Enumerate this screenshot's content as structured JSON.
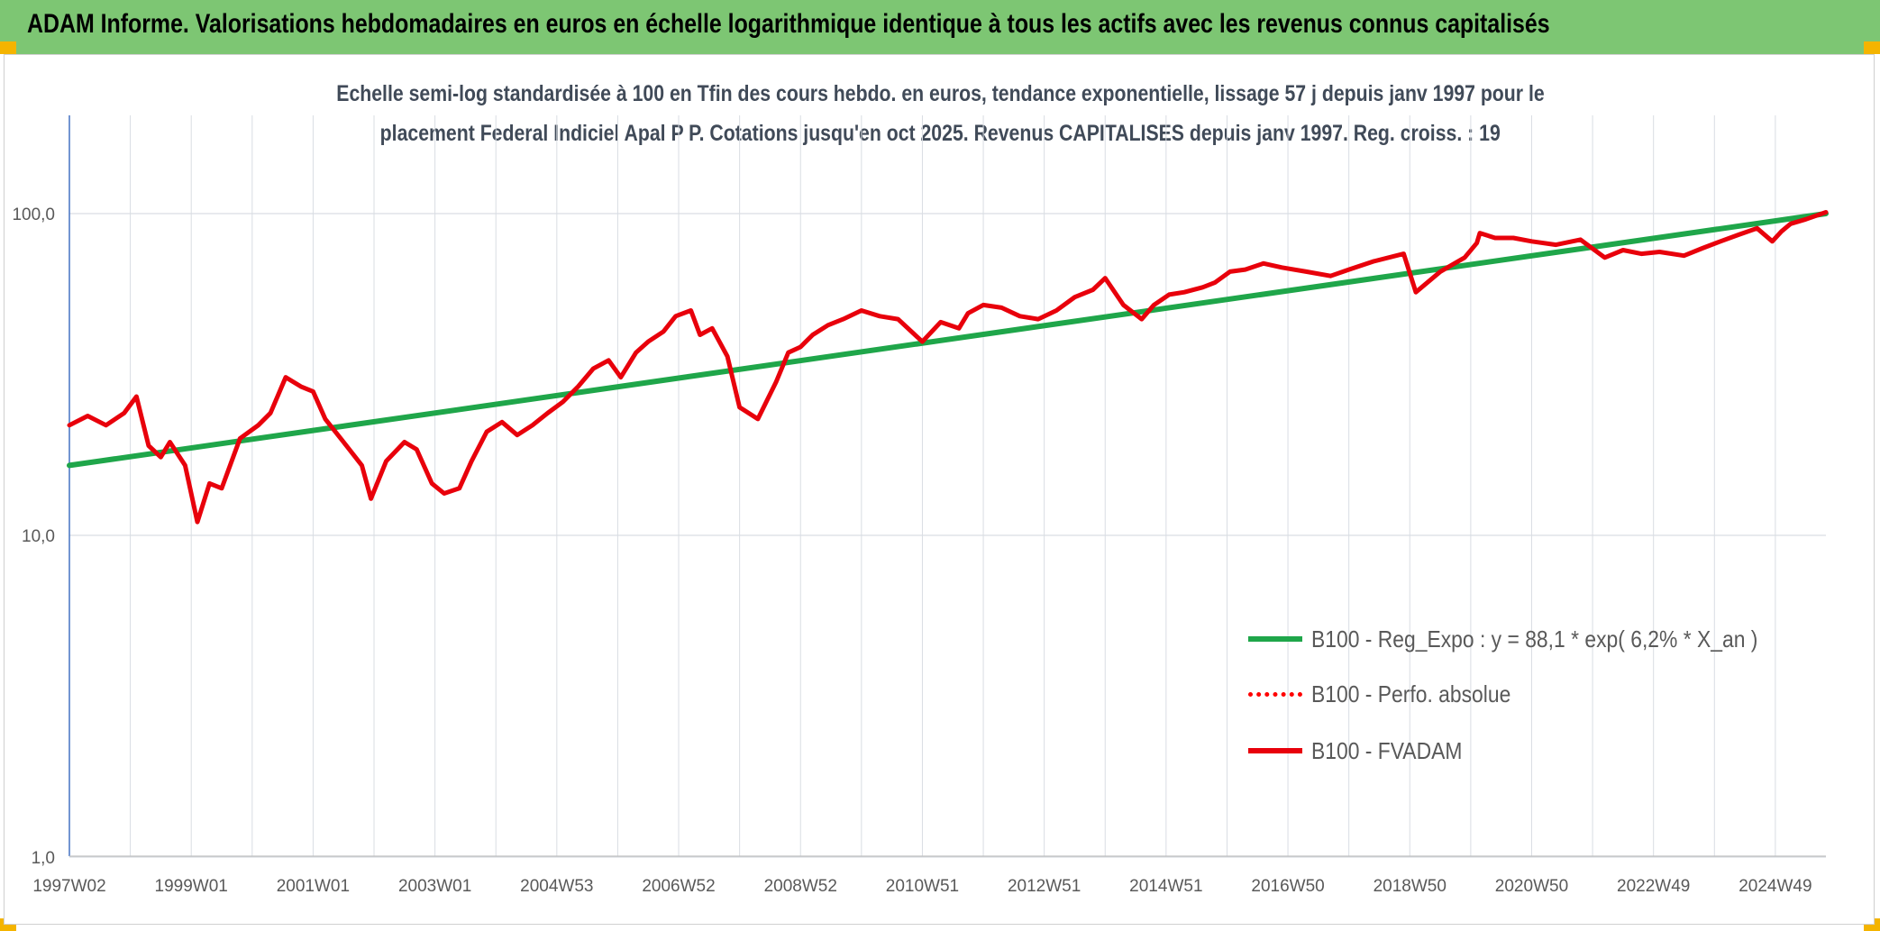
{
  "banner": {
    "title": "ADAM Informe. Valorisations hebdomadaires en euros en échelle logarithmique identique à tous les actifs avec les revenus connus capitalisés"
  },
  "chart_data": {
    "type": "line",
    "title_line1": "Echelle semi-log standardisée à 100 en Tfin des cours hebdo. en euros, tendance exponentielle, lissage 57 j depuis janv 1997 pour le",
    "title_line2": "placement Federal Indiciel Apal P P. Cotations jusqu'en oct 2025. Revenus CAPITALISES depuis janv 1997. Reg. croiss. : 19",
    "y_scale": "log",
    "ylim": [
      1,
      200
    ],
    "y_ticks": [
      {
        "value": 1,
        "label": "1,0"
      },
      {
        "value": 10,
        "label": "10,0"
      },
      {
        "value": 100,
        "label": "100,0"
      }
    ],
    "xlim": [
      1997.0,
      2025.83
    ],
    "x_ticks": [
      {
        "value": 1997.0,
        "label": "1997W02"
      },
      {
        "value": 1999.0,
        "label": "1999W01"
      },
      {
        "value": 2001.0,
        "label": "2001W01"
      },
      {
        "value": 2003.0,
        "label": "2003W01"
      },
      {
        "value": 2005.0,
        "label": "2004W53"
      },
      {
        "value": 2007.0,
        "label": "2006W52"
      },
      {
        "value": 2009.0,
        "label": "2008W52"
      },
      {
        "value": 2011.0,
        "label": "2010W51"
      },
      {
        "value": 2013.0,
        "label": "2012W51"
      },
      {
        "value": 2015.0,
        "label": "2014W51"
      },
      {
        "value": 2017.0,
        "label": "2016W50"
      },
      {
        "value": 2019.0,
        "label": "2018W50"
      },
      {
        "value": 2021.0,
        "label": "2020W50"
      },
      {
        "value": 2023.0,
        "label": "2022W49"
      },
      {
        "value": 2025.0,
        "label": "2024W49"
      }
    ],
    "grid": true,
    "legend_position": "bottom-right",
    "series": [
      {
        "name": "B100 - Reg_Expo : y = 88,1 * exp( 6,2% *  X_an )",
        "color": "#1fa64a",
        "style": "solid",
        "x": [
          1997.0,
          2025.83
        ],
        "y": [
          16.5,
          100
        ]
      },
      {
        "name": "B100 - Perfo. absolue",
        "color": "#ff0000",
        "style": "dotted",
        "x": [],
        "y": []
      },
      {
        "name": "B100 - FVADAM",
        "color": "#e8000b",
        "style": "solid",
        "x": [
          1997.0,
          1997.3,
          1997.6,
          1997.9,
          1998.1,
          1998.3,
          1998.5,
          1998.65,
          1998.9,
          1999.1,
          1999.3,
          1999.5,
          1999.8,
          2000.1,
          2000.3,
          2000.55,
          2000.8,
          2001.0,
          2001.2,
          2001.5,
          2001.8,
          2001.95,
          2002.2,
          2002.5,
          2002.7,
          2002.95,
          2003.15,
          2003.4,
          2003.6,
          2003.85,
          2004.1,
          2004.35,
          2004.6,
          2004.85,
          2005.1,
          2005.35,
          2005.6,
          2005.85,
          2006.05,
          2006.3,
          2006.5,
          2006.75,
          2006.95,
          2007.2,
          2007.35,
          2007.55,
          2007.8,
          2008.0,
          2008.3,
          2008.6,
          2008.8,
          2009.0,
          2009.2,
          2009.45,
          2009.7,
          2010.0,
          2010.3,
          2010.6,
          2011.0,
          2011.3,
          2011.6,
          2011.75,
          2012.0,
          2012.3,
          2012.6,
          2012.9,
          2013.2,
          2013.5,
          2013.8,
          2014.0,
          2014.3,
          2014.6,
          2014.8,
          2015.05,
          2015.3,
          2015.6,
          2015.8,
          2016.05,
          2016.3,
          2016.6,
          2016.9,
          2017.3,
          2017.7,
          2018.0,
          2018.4,
          2018.9,
          2019.1,
          2019.5,
          2019.9,
          2020.1,
          2020.15,
          2020.4,
          2020.7,
          2021.0,
          2021.4,
          2021.8,
          2022.2,
          2022.5,
          2022.8,
          2023.1,
          2023.5,
          2023.8,
          2024.1,
          2024.4,
          2024.7,
          2024.95,
          2025.1,
          2025.25,
          2025.5,
          2025.83
        ],
        "y": [
          22,
          23.5,
          22,
          24,
          27,
          19,
          17.5,
          19.5,
          16.5,
          11,
          14.5,
          14,
          20,
          22,
          24,
          31,
          29,
          28,
          23,
          19.5,
          16.5,
          13,
          17,
          19.5,
          18.5,
          14.5,
          13.5,
          14,
          17,
          21,
          22.5,
          20.5,
          22,
          24,
          26,
          29,
          33,
          35,
          31,
          37,
          40,
          43,
          48,
          50,
          42,
          44,
          36,
          25,
          23,
          30,
          37,
          38.5,
          42,
          45,
          47,
          50,
          48,
          47,
          40,
          46,
          44,
          49,
          52,
          51,
          48,
          47,
          50,
          55,
          58,
          63,
          52,
          47,
          52,
          56,
          57,
          59,
          61,
          66,
          67,
          70,
          68,
          66,
          64,
          67,
          71,
          75,
          57,
          66,
          73,
          81,
          87,
          84,
          84,
          82,
          80,
          83,
          73,
          77,
          75,
          76,
          74,
          78,
          82,
          86,
          90,
          82,
          88,
          93,
          96,
          101
        ]
      }
    ]
  },
  "legend": {
    "reg_label": "B100 - Reg_Expo : y = 88,1 * exp( 6,2% *  X_an )",
    "perfo_label": "B100 - Perfo. absolue",
    "fvadam_label": "B100 - FVADAM"
  },
  "colors": {
    "banner": "#7dc673",
    "trend": "#1fa64a",
    "price": "#e8000b",
    "grid": "#d9dde3",
    "axis": "#4472c4"
  }
}
